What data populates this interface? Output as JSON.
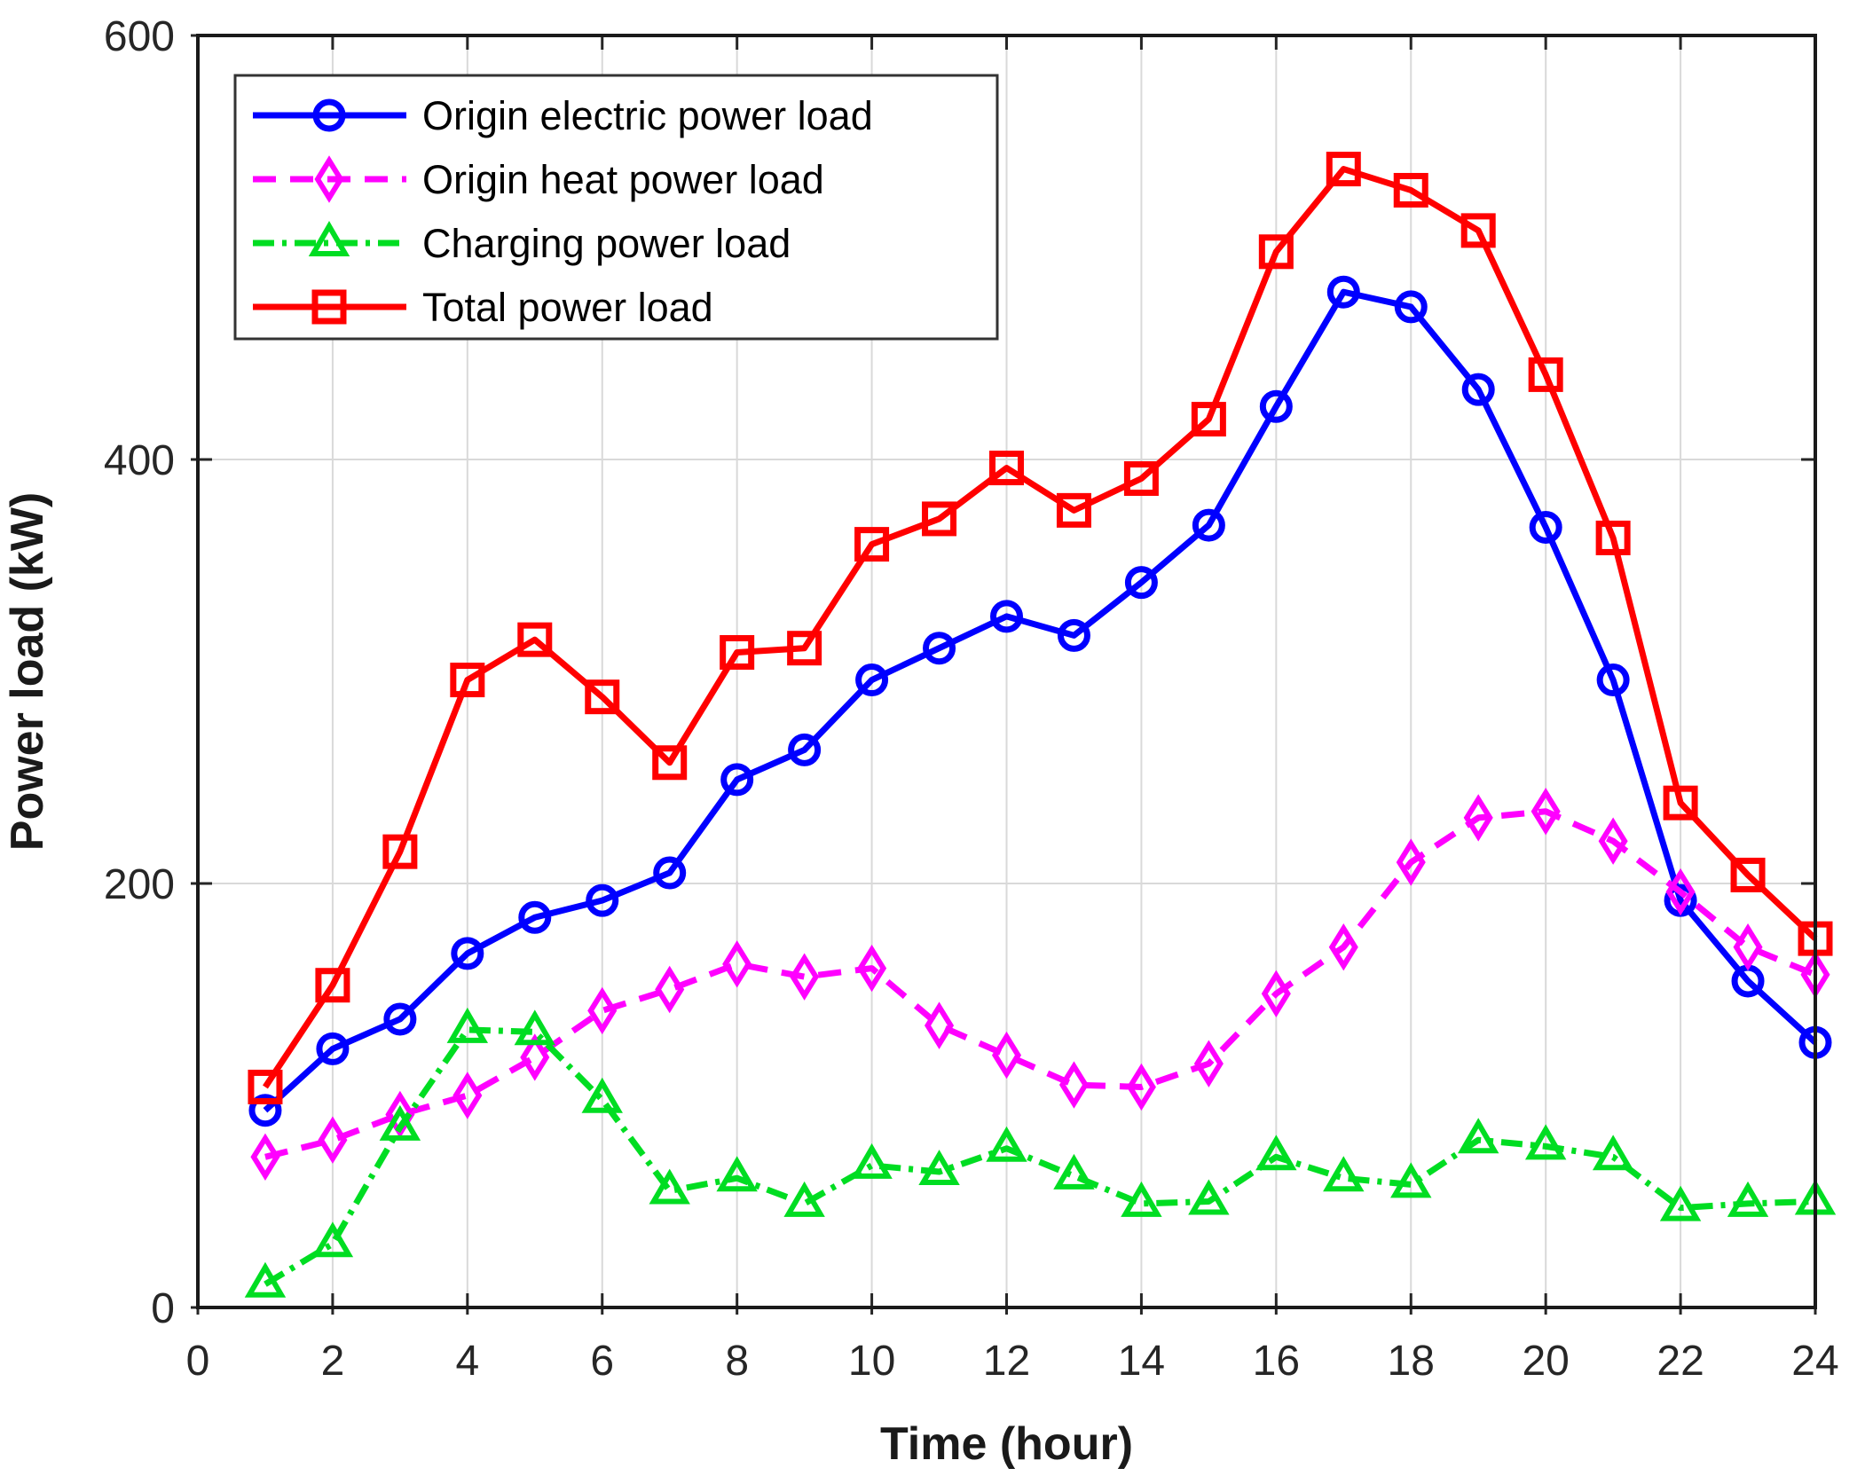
{
  "figure": {
    "background": "#ffffff",
    "axes_box_color": "#1a1a1a",
    "grid_color": "#d9d9d9",
    "tick_color": "#262626"
  },
  "chart_data": {
    "type": "line",
    "title": "",
    "xlabel": "Time (hour)",
    "ylabel": "Power load (kW)",
    "xlim": [
      0,
      24
    ],
    "ylim": [
      0,
      600
    ],
    "xticks": [
      0,
      2,
      4,
      6,
      8,
      10,
      12,
      14,
      16,
      18,
      20,
      22,
      24
    ],
    "yticks": [
      0,
      200,
      400,
      600
    ],
    "grid": true,
    "legend_position": "top-left",
    "x": [
      1,
      2,
      3,
      4,
      5,
      6,
      7,
      8,
      9,
      10,
      11,
      12,
      13,
      14,
      15,
      16,
      17,
      18,
      19,
      20,
      21,
      22,
      23,
      24
    ],
    "series": [
      {
        "name": "Origin electric power load",
        "color": "#0000ff",
        "line_style": "solid",
        "marker": "circle",
        "values": [
          93,
          122,
          136,
          167,
          184,
          192,
          205,
          249,
          263,
          296,
          311,
          326,
          317,
          342,
          369,
          425,
          479,
          472,
          433,
          368,
          296,
          192,
          154,
          125
        ]
      },
      {
        "name": "Origin heat power load",
        "color": "#ff00ff",
        "line_style": "dashed",
        "marker": "diamond",
        "values": [
          71,
          79,
          91,
          100,
          118,
          140,
          150,
          162,
          156,
          160,
          133,
          119,
          105,
          104,
          115,
          148,
          170,
          210,
          231,
          234,
          220,
          196,
          170,
          157
        ]
      },
      {
        "name": "Charging power load",
        "color": "#00dd22",
        "line_style": "dash-dot",
        "marker": "triangle-up",
        "values": [
          11,
          30,
          85,
          131,
          130,
          98,
          55,
          61,
          49,
          67,
          64,
          75,
          62,
          49,
          50,
          71,
          61,
          58,
          79,
          76,
          71,
          47,
          49,
          50
        ]
      },
      {
        "name": "Total power load",
        "color": "#ff0000",
        "line_style": "solid",
        "marker": "square",
        "values": [
          104,
          152,
          215,
          296,
          315,
          288,
          257,
          309,
          311,
          360,
          372,
          396,
          376,
          391,
          419,
          498,
          537,
          527,
          508,
          440,
          363,
          238,
          204,
          174
        ]
      }
    ]
  }
}
